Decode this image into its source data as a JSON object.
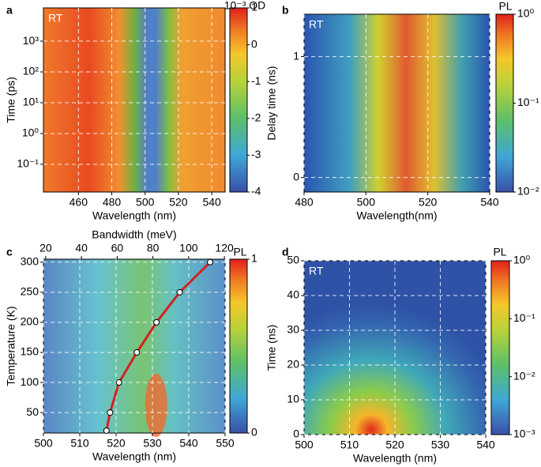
{
  "chart_data": [
    {
      "type": "heatmap",
      "panel": "a",
      "annotation": "RT",
      "xlabel": "Wavelength (nm)",
      "ylabel": "Time (ps)",
      "xlim": [
        439,
        548
      ],
      "xticks": [
        460,
        480,
        500,
        520,
        540
      ],
      "ylim": [
        0.0126,
        12000
      ],
      "ylog": true,
      "yticks": [
        {
          "value": 0.1,
          "label": "10⁻¹"
        },
        {
          "value": 1,
          "label": "10⁰"
        },
        {
          "value": 10,
          "label": "10¹"
        },
        {
          "value": 100,
          "label": "10²"
        },
        {
          "value": 1000,
          "label": "10³"
        }
      ],
      "colorbar_label": "10⁻³ OD",
      "clim": [
        -4,
        1
      ],
      "cticks": [
        -4,
        -3,
        -2,
        -1,
        0,
        1
      ],
      "grid": true
    },
    {
      "type": "heatmap",
      "panel": "b",
      "annotation": "RT",
      "xlabel": "Wavelength(nm)",
      "ylabel": "Delay time (ns)",
      "xlim": [
        480,
        540
      ],
      "xticks": [
        480,
        500,
        520,
        540
      ],
      "ylim": [
        -0.12,
        1.35
      ],
      "yticks": [
        0,
        1
      ],
      "colorbar_label": "PL",
      "clim": [
        0.01,
        1
      ],
      "clog": true,
      "cticks": [
        {
          "value": 1,
          "label": "10⁰"
        },
        {
          "value": 0.1,
          "label": "10⁻¹"
        },
        {
          "value": 0.01,
          "label": "10⁻²"
        }
      ],
      "grid": true
    },
    {
      "type": "heatmap",
      "panel": "c",
      "xlabel": "Wavelength (nm)",
      "ylabel": "Temperature (K)",
      "x2label": "Bandwidth (meV)",
      "x2lim": [
        18.7,
        120.4
      ],
      "x2ticks": [
        20,
        40,
        60,
        80,
        100,
        120
      ],
      "xlim": [
        500,
        550
      ],
      "xticks": [
        500,
        510,
        520,
        530,
        540,
        550
      ],
      "ylim": [
        16,
        305
      ],
      "yticks": [
        50,
        100,
        150,
        200,
        250,
        300
      ],
      "colorbar_label": "PL",
      "clim": [
        0,
        1
      ],
      "cticks": [
        0,
        1
      ],
      "grid": true,
      "series": [
        {
          "color": "#d42020",
          "axis": "x2",
          "x": [
            54,
            56,
            61,
            71,
            82,
            95,
            112
          ],
          "values": [
            20,
            50,
            100,
            150,
            200,
            250,
            300
          ]
        }
      ]
    },
    {
      "type": "heatmap",
      "panel": "d",
      "annotation": "RT",
      "xlabel": "Wavelength (nm)",
      "ylabel": "Time (ns)",
      "xlim": [
        500,
        540
      ],
      "xticks": [
        500,
        510,
        520,
        530,
        540
      ],
      "ylim": [
        0,
        50
      ],
      "yticks": [
        0,
        10,
        20,
        30,
        40,
        50
      ],
      "colorbar_label": "PL",
      "clim": [
        0.001,
        1
      ],
      "clog": true,
      "cticks": [
        {
          "value": 1,
          "label": "10⁰"
        },
        {
          "value": 0.1,
          "label": "10⁻¹"
        },
        {
          "value": 0.01,
          "label": "10⁻²"
        },
        {
          "value": 0.001,
          "label": "10⁻³"
        }
      ],
      "grid": true
    }
  ]
}
